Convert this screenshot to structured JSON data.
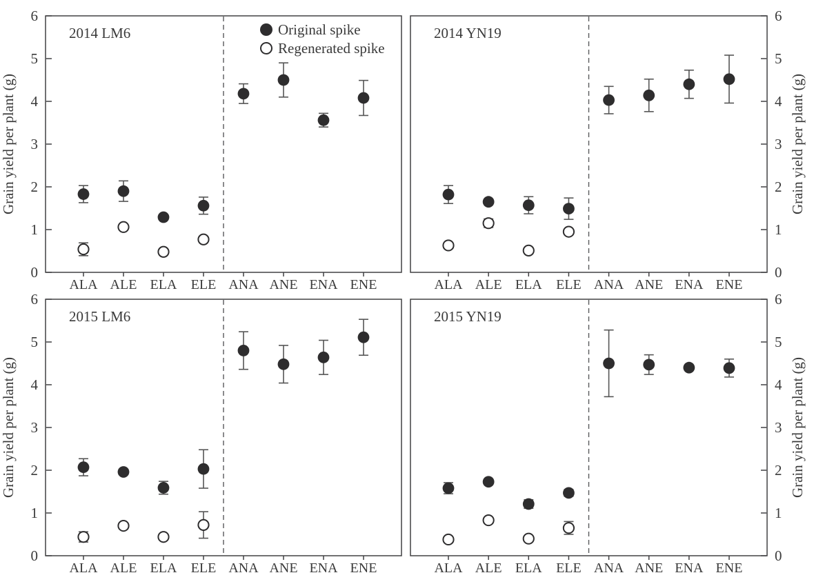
{
  "figure": {
    "description": "Four-panel scatter plot of grain yield per plant",
    "ylabel": "Grain yield per plant (g)"
  },
  "chart_data": {
    "type": "scatter",
    "categories": [
      "ALA",
      "ALE",
      "ELA",
      "ELE",
      "ANA",
      "ANE",
      "ENA",
      "ENE"
    ],
    "ylabel": "Grain yield per plant (g)",
    "ylim": [
      0,
      6
    ],
    "yticks": [
      0,
      1,
      2,
      3,
      4,
      5,
      6
    ],
    "grid": false,
    "divider": "dashed vertical line between ELE and ANA in every panel",
    "legend": {
      "position": "top of first panel",
      "items": [
        {
          "label": "Original spike",
          "marker": "filled-circle"
        },
        {
          "label": "Regenerated spike",
          "marker": "open-circle"
        }
      ]
    },
    "colors": {
      "marker": "#2e2d2e",
      "marker_open_fill": "#ffffff",
      "error_bar": "#555555",
      "axis": "#414042",
      "text": "#3a3a3a",
      "divider": "#58595b",
      "background": "#ffffff"
    },
    "panels": [
      {
        "title": "2014 LM6",
        "y_axis_side": "left",
        "show_legend": true,
        "series": [
          {
            "name": "Original spike",
            "marker": "filled",
            "values": [
              1.83,
              1.9,
              1.29,
              1.56,
              4.18,
              4.5,
              3.56,
              4.08
            ],
            "errors": [
              0.2,
              0.24,
              0.06,
              0.2,
              0.23,
              0.4,
              0.16,
              0.41
            ]
          },
          {
            "name": "Regenerated spike",
            "marker": "open",
            "values": [
              0.54,
              1.06,
              0.48,
              0.77,
              null,
              null,
              null,
              null
            ],
            "errors": [
              0.15,
              0.05,
              0.05,
              0.05,
              null,
              null,
              null,
              null
            ]
          }
        ]
      },
      {
        "title": "2014 YN19",
        "y_axis_side": "right",
        "show_legend": false,
        "series": [
          {
            "name": "Original spike",
            "marker": "filled",
            "values": [
              1.82,
              1.65,
              1.57,
              1.49,
              4.03,
              4.14,
              4.4,
              4.52
            ],
            "errors": [
              0.21,
              0.06,
              0.2,
              0.25,
              0.32,
              0.38,
              0.33,
              0.56
            ]
          },
          {
            "name": "Regenerated spike",
            "marker": "open",
            "values": [
              0.63,
              1.15,
              0.51,
              0.95,
              null,
              null,
              null,
              null
            ],
            "errors": [
              0.06,
              0.1,
              0.05,
              0.06,
              null,
              null,
              null,
              null
            ]
          }
        ]
      },
      {
        "title": "2015 LM6",
        "y_axis_side": "left",
        "show_legend": false,
        "series": [
          {
            "name": "Original spike",
            "marker": "filled",
            "values": [
              2.07,
              1.96,
              1.59,
              2.03,
              4.8,
              4.48,
              4.64,
              5.11
            ],
            "errors": [
              0.2,
              0.06,
              0.15,
              0.45,
              0.44,
              0.44,
              0.4,
              0.42
            ]
          },
          {
            "name": "Regenerated spike",
            "marker": "open",
            "values": [
              0.44,
              0.7,
              0.44,
              0.72,
              null,
              null,
              null,
              null
            ],
            "errors": [
              0.12,
              0.05,
              0.05,
              0.31,
              null,
              null,
              null,
              null
            ]
          }
        ]
      },
      {
        "title": "2015 YN19",
        "y_axis_side": "right",
        "show_legend": false,
        "series": [
          {
            "name": "Original spike",
            "marker": "filled",
            "values": [
              1.58,
              1.73,
              1.21,
              1.47,
              4.5,
              4.47,
              4.4,
              4.39
            ],
            "errors": [
              0.13,
              0.05,
              0.1,
              0.08,
              0.78,
              0.23,
              0.04,
              0.21
            ]
          },
          {
            "name": "Regenerated spike",
            "marker": "open",
            "values": [
              0.38,
              0.83,
              0.4,
              0.65,
              null,
              null,
              null,
              null
            ],
            "errors": [
              0.05,
              0.05,
              0.05,
              0.15,
              null,
              null,
              null,
              null
            ]
          }
        ]
      }
    ]
  }
}
